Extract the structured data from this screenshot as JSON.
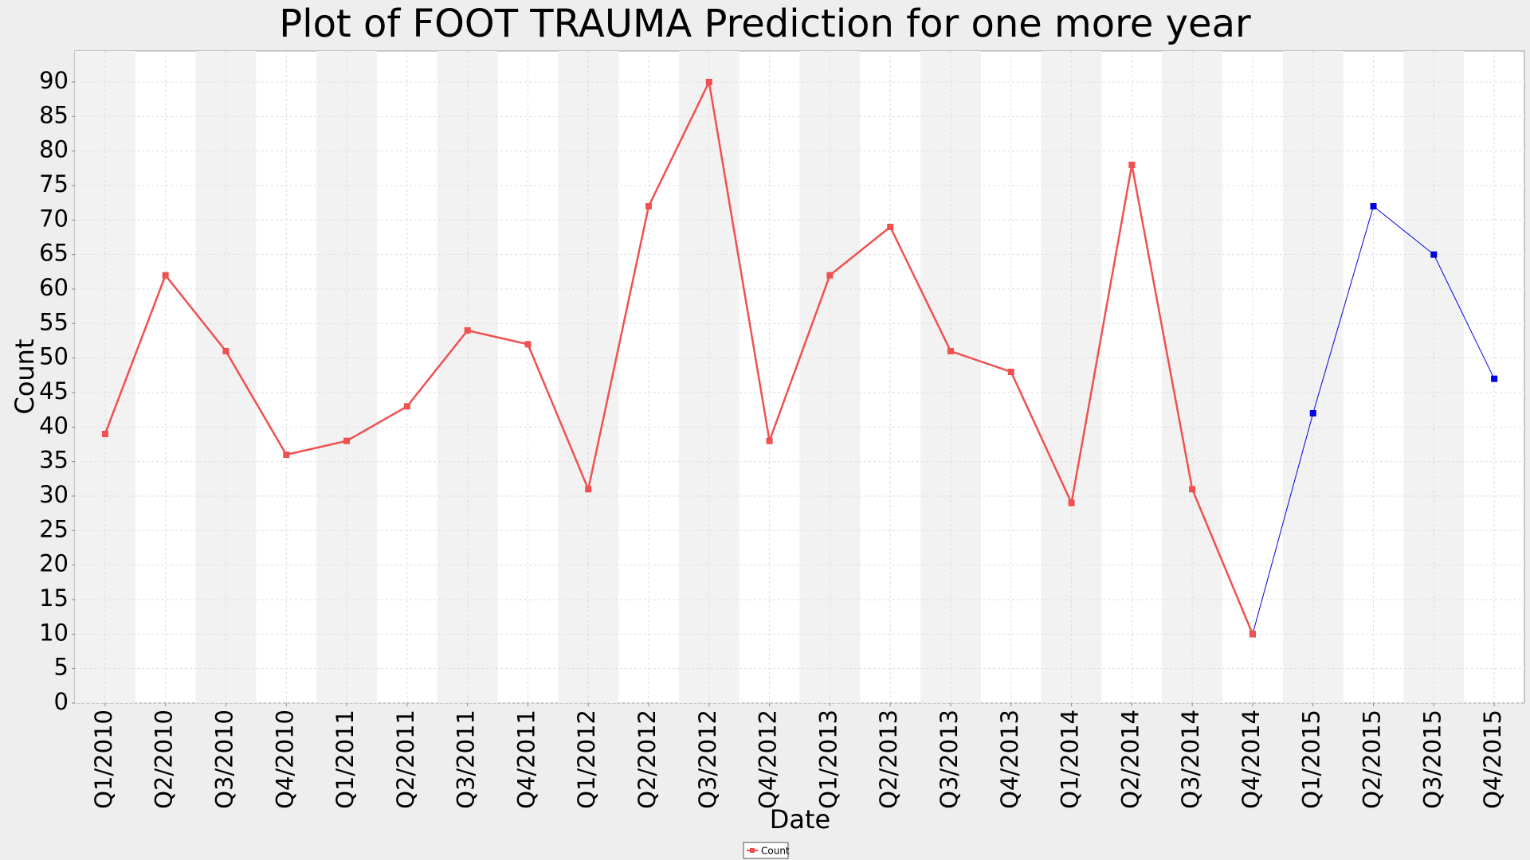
{
  "chart_data": {
    "type": "line",
    "title": "Plot of FOOT TRAUMA Prediction for one more year",
    "x_label": "Date",
    "y_label": "Count",
    "categories": [
      "Q1/2010",
      "Q2/2010",
      "Q3/2010",
      "Q4/2010",
      "Q1/2011",
      "Q2/2011",
      "Q3/2011",
      "Q4/2011",
      "Q1/2012",
      "Q2/2012",
      "Q3/2012",
      "Q4/2012",
      "Q1/2013",
      "Q2/2013",
      "Q3/2013",
      "Q4/2013",
      "Q1/2014",
      "Q2/2014",
      "Q3/2014",
      "Q4/2014",
      "Q1/2015",
      "Q2/2015",
      "Q3/2015",
      "Q4/2015"
    ],
    "series": [
      {
        "color": "#0000e0",
        "values": [
          null,
          null,
          null,
          null,
          null,
          null,
          null,
          null,
          null,
          null,
          null,
          null,
          null,
          null,
          null,
          null,
          null,
          null,
          null,
          10,
          42,
          72,
          65,
          47
        ]
      },
      {
        "name": "Count",
        "color": "#f05050",
        "values": [
          39,
          62,
          51,
          36,
          38,
          43,
          54,
          52,
          31,
          72,
          90,
          38,
          62,
          69,
          51,
          48,
          29,
          78,
          31,
          10,
          null,
          null,
          null,
          null
        ]
      }
    ],
    "ylim": [
      0,
      94.5
    ],
    "yticks": [
      0,
      5,
      10,
      15,
      20,
      25,
      30,
      35,
      40,
      45,
      50,
      55,
      60,
      65,
      70,
      75,
      80,
      85,
      90
    ],
    "grid": true,
    "legend": "bottom"
  }
}
